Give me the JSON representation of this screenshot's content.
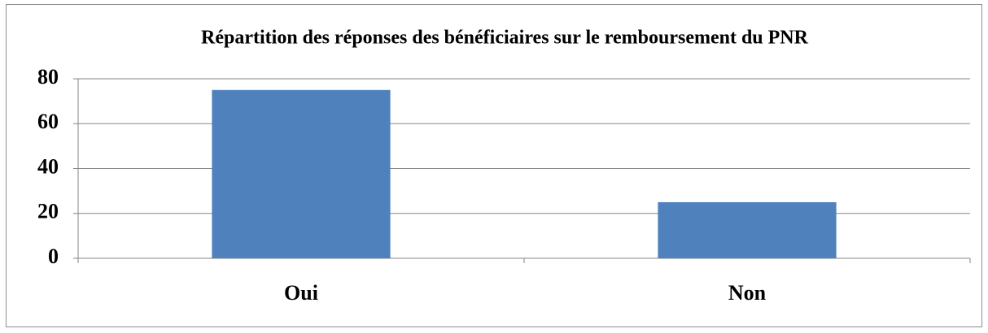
{
  "chart_data": {
    "type": "bar",
    "title": "Répartition des réponses des bénéficiaires sur le remboursement du PNR",
    "categories": [
      "Oui",
      "Non"
    ],
    "values": [
      75,
      25
    ],
    "color": "#4f81bd",
    "ylim": [
      0,
      80
    ],
    "yticks": [
      0,
      20,
      40,
      60,
      80
    ],
    "grid": true
  }
}
